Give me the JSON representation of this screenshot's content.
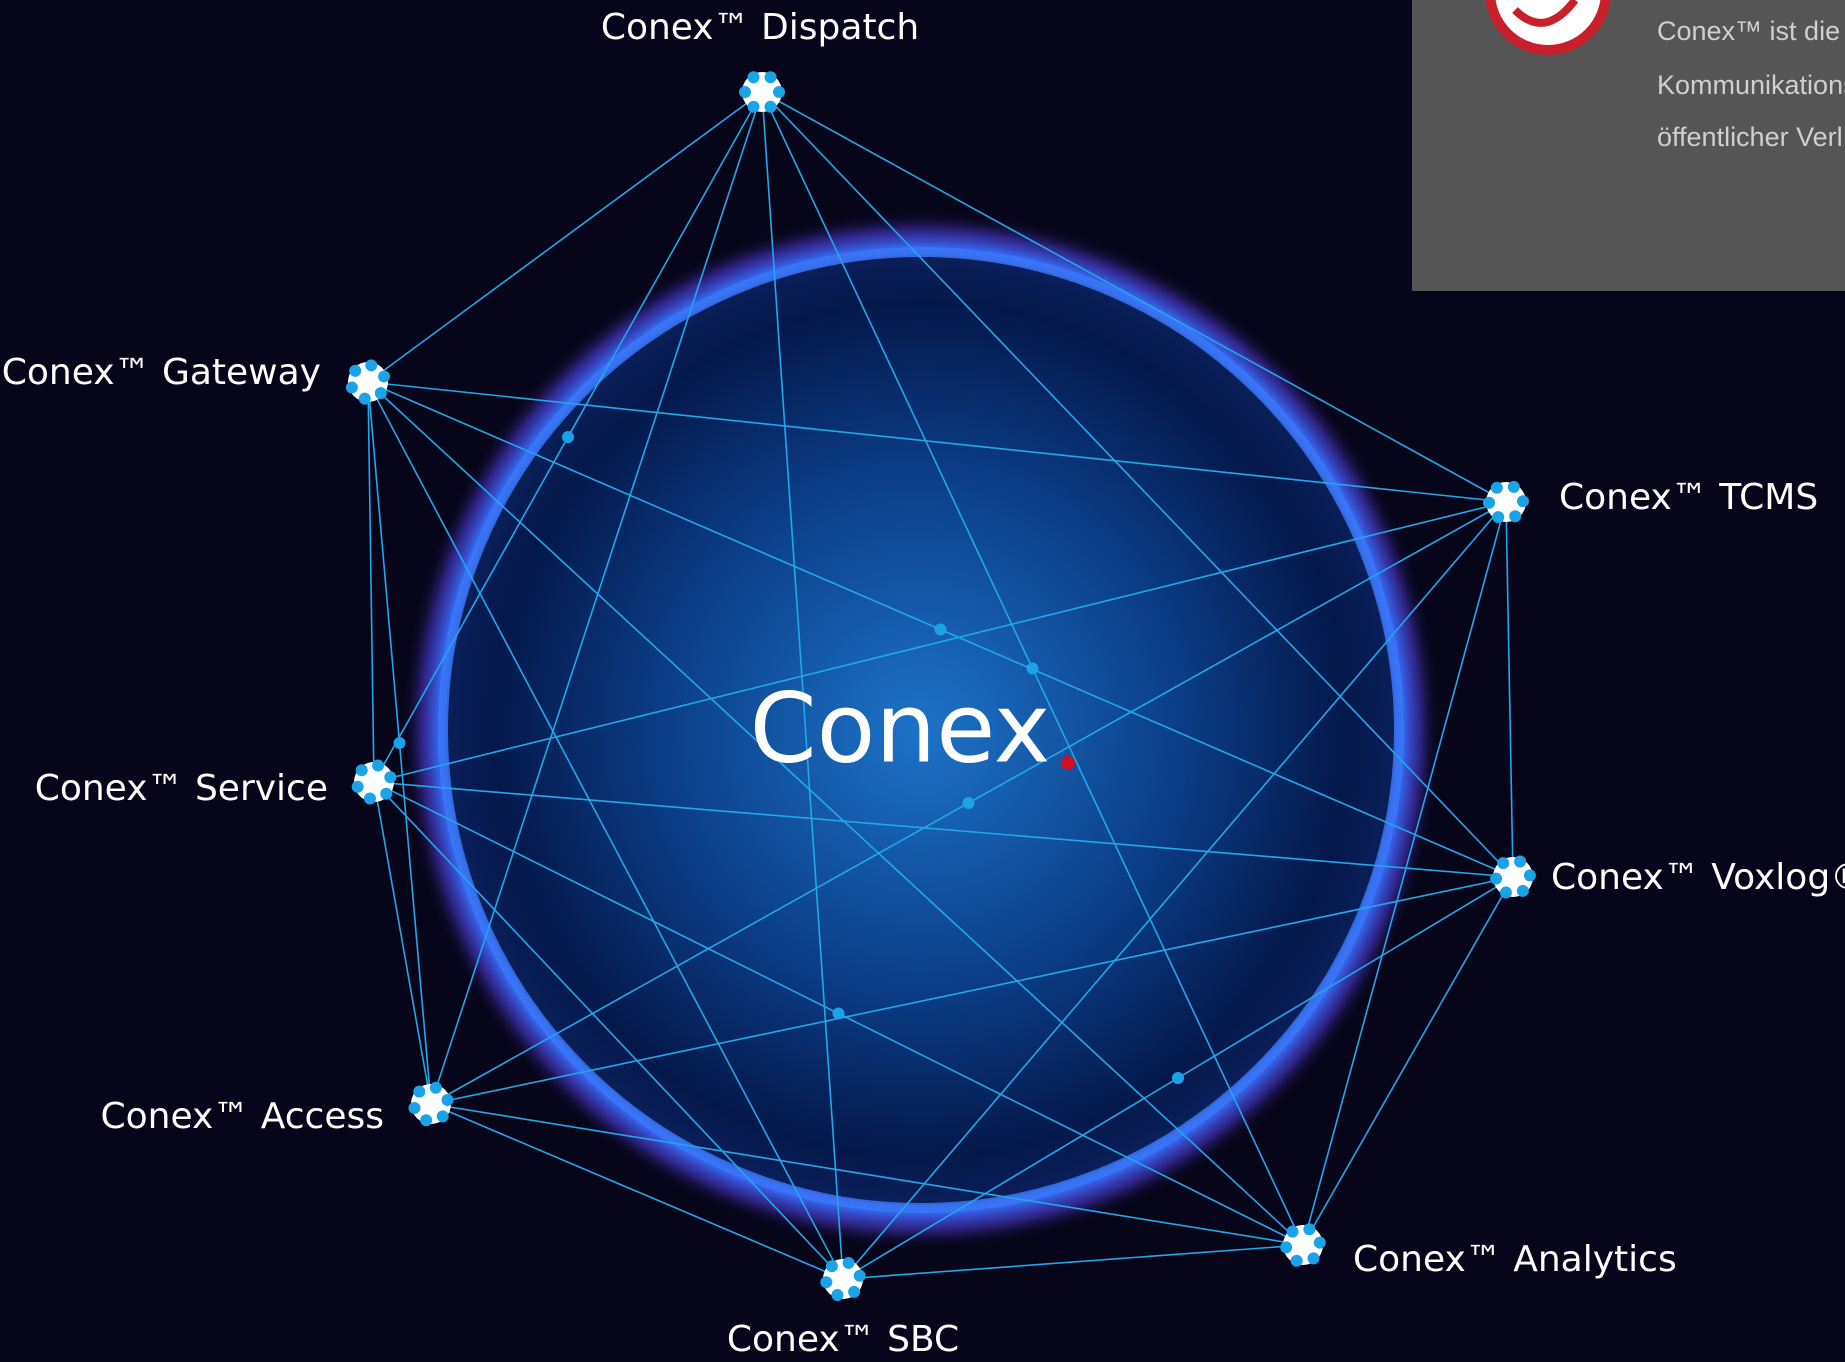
{
  "center": {
    "title": "Conex"
  },
  "nodes": [
    {
      "label": "Conex™ Dispatch"
    },
    {
      "label": "Conex™ TCMS"
    },
    {
      "label": "Conex™ Voxlog®"
    },
    {
      "label": "Conex™ Analytics"
    },
    {
      "label": "Conex™ SBC"
    },
    {
      "label": "Conex™ Access"
    },
    {
      "label": "Conex™ Service"
    },
    {
      "label": "Conex™ Gateway"
    }
  ],
  "info": {
    "lines": [
      "Conex™ ist die g",
      "Kommunikations",
      "öffentlicher Verl"
    ]
  }
}
